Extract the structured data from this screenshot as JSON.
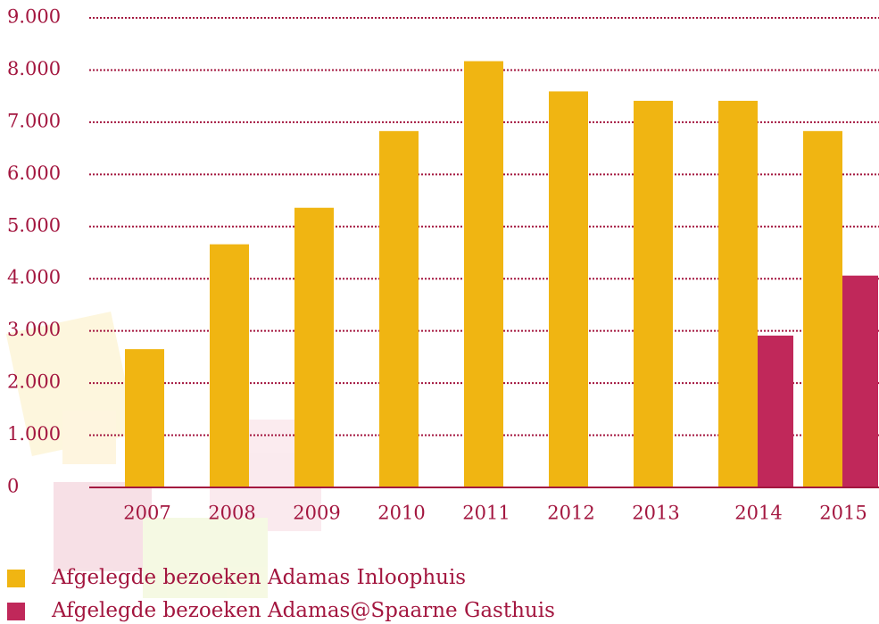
{
  "chart_data": {
    "type": "bar",
    "categories": [
      "2007",
      "2008",
      "2009",
      "2010",
      "2011",
      "2012",
      "2013",
      "2014",
      "2015"
    ],
    "series": [
      {
        "name": "Afgelegde bezoeken Adamas Inloophuis",
        "color": "#f0b512",
        "values": [
          2650,
          4660,
          5360,
          6830,
          8170,
          7590,
          7410,
          7410,
          6830
        ]
      },
      {
        "name": "Afgelegde bezoeken Adamas@Spaarne Gasthuis",
        "color": "#c0285a",
        "values": [
          null,
          null,
          null,
          null,
          null,
          null,
          null,
          2910,
          4060
        ]
      }
    ],
    "ylim": [
      0,
      9000
    ],
    "yticks": [
      0,
      {
        "value": 1000,
        "label": "1.000"
      },
      {
        "value": 2000,
        "label": "2.000"
      },
      {
        "value": 3000,
        "label": "3.000"
      },
      {
        "value": 4000,
        "label": "4.000"
      },
      {
        "value": 5000,
        "label": "5.000"
      },
      {
        "value": 6000,
        "label": "6.000"
      },
      {
        "value": 7000,
        "label": "7.000"
      },
      {
        "value": 8000,
        "label": "8.000"
      },
      {
        "value": 9000,
        "label": "9.000"
      }
    ],
    "grid": true
  }
}
